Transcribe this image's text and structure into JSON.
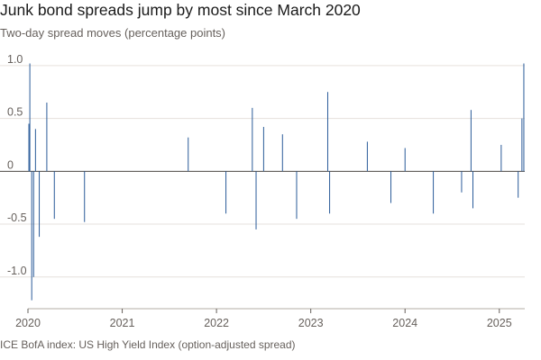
{
  "chart_data": {
    "type": "bar",
    "title": "Junk bond spreads jump by most since March 2020",
    "subtitle": "Two-day spread moves (percentage points)",
    "source": "ICE BofA index: US High Yield Index (option-adjusted spread)",
    "xlabel": "",
    "ylabel": "",
    "ylim": [
      -1.3,
      1.05
    ],
    "xlim": [
      2020.0,
      2025.27
    ],
    "y_ticks": [
      {
        "value": 1.0,
        "label": "1.0"
      },
      {
        "value": 0.5,
        "label": "0.5"
      },
      {
        "value": 0,
        "label": "0"
      },
      {
        "value": -0.5,
        "label": "-0.5"
      },
      {
        "value": -1.0,
        "label": "-1.0"
      }
    ],
    "x_ticks": [
      {
        "value": 2020,
        "label": "2020"
      },
      {
        "value": 2021,
        "label": "2021"
      },
      {
        "value": 2022,
        "label": "2022"
      },
      {
        "value": 2023,
        "label": "2023"
      },
      {
        "value": 2024,
        "label": "2024"
      },
      {
        "value": 2025,
        "label": "2025"
      }
    ],
    "grid": true,
    "color": "#2a5b99",
    "notable_points": [
      {
        "x": 2020.01,
        "y": 0.45
      },
      {
        "x": 2020.02,
        "y": 1.02
      },
      {
        "x": 2020.04,
        "y": -1.22
      },
      {
        "x": 2020.06,
        "y": -1.0
      },
      {
        "x": 2020.08,
        "y": 0.4
      },
      {
        "x": 2020.12,
        "y": -0.62
      },
      {
        "x": 2020.2,
        "y": 0.65
      },
      {
        "x": 2020.28,
        "y": -0.45
      },
      {
        "x": 2020.6,
        "y": -0.48
      },
      {
        "x": 2021.7,
        "y": 0.32
      },
      {
        "x": 2022.1,
        "y": -0.4
      },
      {
        "x": 2022.38,
        "y": 0.6
      },
      {
        "x": 2022.42,
        "y": -0.55
      },
      {
        "x": 2022.5,
        "y": 0.42
      },
      {
        "x": 2022.7,
        "y": 0.35
      },
      {
        "x": 2022.85,
        "y": -0.45
      },
      {
        "x": 2023.18,
        "y": 0.75
      },
      {
        "x": 2023.2,
        "y": -0.4
      },
      {
        "x": 2023.6,
        "y": 0.28
      },
      {
        "x": 2023.85,
        "y": -0.3
      },
      {
        "x": 2024.0,
        "y": 0.22
      },
      {
        "x": 2024.3,
        "y": -0.4
      },
      {
        "x": 2024.6,
        "y": -0.2
      },
      {
        "x": 2024.7,
        "y": 0.58
      },
      {
        "x": 2024.72,
        "y": -0.35
      },
      {
        "x": 2025.02,
        "y": 0.25
      },
      {
        "x": 2025.2,
        "y": -0.25
      },
      {
        "x": 2025.24,
        "y": 0.5
      },
      {
        "x": 2025.26,
        "y": 1.02
      }
    ]
  }
}
